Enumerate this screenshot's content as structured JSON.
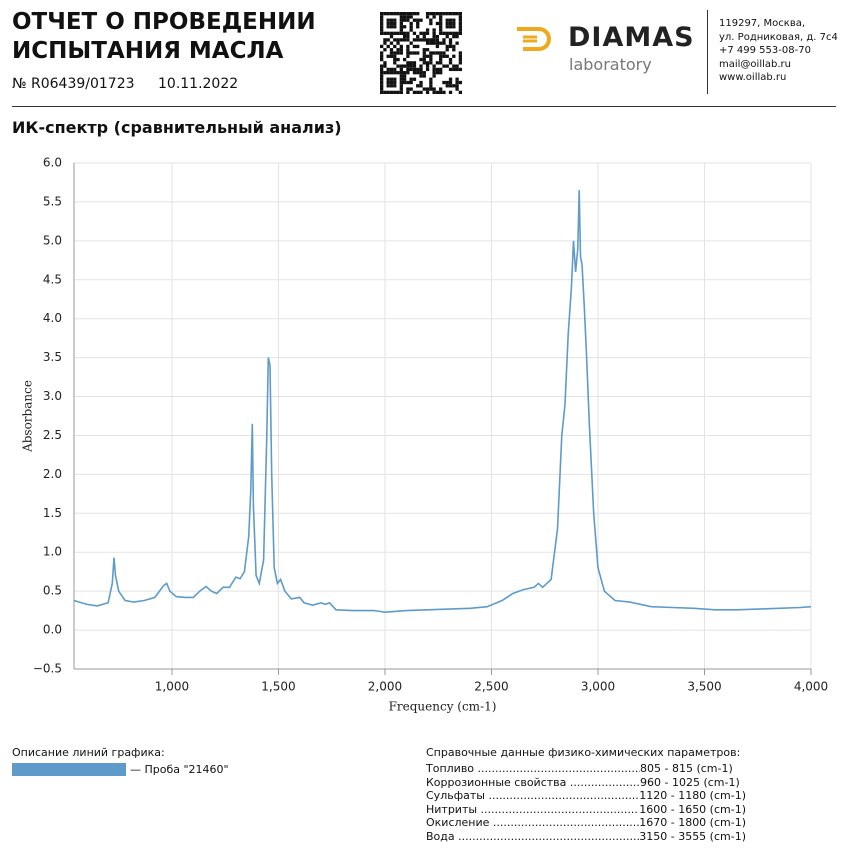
{
  "header": {
    "title": [
      "ОТЧЕТ О ПРОВЕДЕНИИ",
      "ИСПЫТАНИЯ МАСЛА"
    ],
    "number": "№ R06439/01723",
    "date": "10.11.2022"
  },
  "logo": {
    "name": "DIAMAS",
    "subtitle": "laboratory"
  },
  "contacts": [
    "119297, Москва,",
    "ул. Родниковая, д. 7с4",
    "+7 499 553-08-70",
    "mail@oillab.ru",
    "www.oillab.ru"
  ],
  "chart_data": {
    "type": "line",
    "title": "ИК-спектр (сравнительный анализ)",
    "xlabel": "Frequency (cm-1)",
    "ylabel": "Absorbance",
    "x": [
      540,
      600,
      650,
      700,
      720,
      728,
      735,
      750,
      780,
      820,
      870,
      920,
      960,
      975,
      990,
      1020,
      1060,
      1100,
      1130,
      1160,
      1185,
      1210,
      1240,
      1270,
      1300,
      1320,
      1340,
      1360,
      1370,
      1377,
      1382,
      1395,
      1410,
      1430,
      1445,
      1452,
      1460,
      1468,
      1480,
      1495,
      1510,
      1530,
      1560,
      1600,
      1620,
      1660,
      1700,
      1720,
      1740,
      1770,
      1850,
      1950,
      2000,
      2100,
      2200,
      2300,
      2400,
      2480,
      2550,
      2600,
      2650,
      2700,
      2720,
      2740,
      2780,
      2810,
      2830,
      2845,
      2860,
      2875,
      2885,
      2895,
      2905,
      2912,
      2918,
      2925,
      2935,
      2945,
      2960,
      2980,
      3000,
      3030,
      3080,
      3150,
      3250,
      3350,
      3450,
      3550,
      3650,
      3750,
      3850,
      3950,
      4000
    ],
    "series": [
      {
        "name": "— Проба \"21460\"",
        "color": "#5e9bcb",
        "values": [
          0.38,
          0.33,
          0.31,
          0.35,
          0.6,
          0.93,
          0.7,
          0.5,
          0.38,
          0.36,
          0.38,
          0.42,
          0.57,
          0.6,
          0.5,
          0.43,
          0.42,
          0.42,
          0.5,
          0.56,
          0.5,
          0.47,
          0.55,
          0.55,
          0.68,
          0.66,
          0.75,
          1.2,
          1.8,
          2.65,
          1.6,
          0.7,
          0.6,
          0.9,
          2.5,
          3.5,
          3.4,
          2.0,
          0.8,
          0.6,
          0.65,
          0.5,
          0.4,
          0.42,
          0.35,
          0.32,
          0.35,
          0.33,
          0.35,
          0.26,
          0.25,
          0.25,
          0.23,
          0.25,
          0.26,
          0.27,
          0.28,
          0.3,
          0.38,
          0.47,
          0.52,
          0.55,
          0.6,
          0.55,
          0.65,
          1.3,
          2.5,
          2.9,
          3.8,
          4.4,
          5.0,
          4.6,
          4.9,
          5.65,
          4.8,
          4.7,
          4.2,
          3.6,
          2.6,
          1.5,
          0.8,
          0.5,
          0.38,
          0.36,
          0.3,
          0.29,
          0.28,
          0.26,
          0.26,
          0.27,
          0.28,
          0.29,
          0.3
        ]
      }
    ],
    "xlim": [
      540,
      4000
    ],
    "xticks": [
      {
        "value": 1000,
        "label": "1,000"
      },
      {
        "value": 1500,
        "label": "1,500"
      },
      {
        "value": 2000,
        "label": "2,000"
      },
      {
        "value": 2500,
        "label": "2,500"
      },
      {
        "value": 3000,
        "label": "3,000"
      },
      {
        "value": 3500,
        "label": "3,500"
      },
      {
        "value": 4000,
        "label": "4,000"
      }
    ],
    "ylim": [
      -0.5,
      6
    ],
    "yticks": [
      {
        "value": -0.5,
        "label": "−0.5"
      },
      {
        "value": 0,
        "label": "0.0"
      },
      {
        "value": 0.5,
        "label": "0.5"
      },
      {
        "value": 1,
        "label": "1.0"
      },
      {
        "value": 1.5,
        "label": "1.5"
      },
      {
        "value": 2,
        "label": "2.0"
      },
      {
        "value": 2.5,
        "label": "2.5"
      },
      {
        "value": 3,
        "label": "3.0"
      },
      {
        "value": 3.5,
        "label": "3.5"
      },
      {
        "value": 4,
        "label": "4.0"
      },
      {
        "value": 4.5,
        "label": "4.5"
      },
      {
        "value": 5,
        "label": "5.0"
      },
      {
        "value": 5.5,
        "label": "5.5"
      },
      {
        "value": 6,
        "label": "6.0"
      }
    ],
    "grid": true
  },
  "legend": {
    "title": "Описание линий графика:"
  },
  "reference": {
    "title": "Справочные данные физико-химических параметров:",
    "rows": [
      [
        "Топливо",
        "805 - 815 (cm-1)"
      ],
      [
        "Коррозионные свойства",
        "960 - 1025 (cm-1)"
      ],
      [
        "Сульфаты",
        "1120 - 1180 (cm-1)"
      ],
      [
        "Нитриты",
        "1600 - 1650 (cm-1)"
      ],
      [
        "Окисление",
        "1670 - 1800 (cm-1)"
      ],
      [
        "Вода",
        "3150 - 3555 (cm-1)"
      ]
    ]
  }
}
